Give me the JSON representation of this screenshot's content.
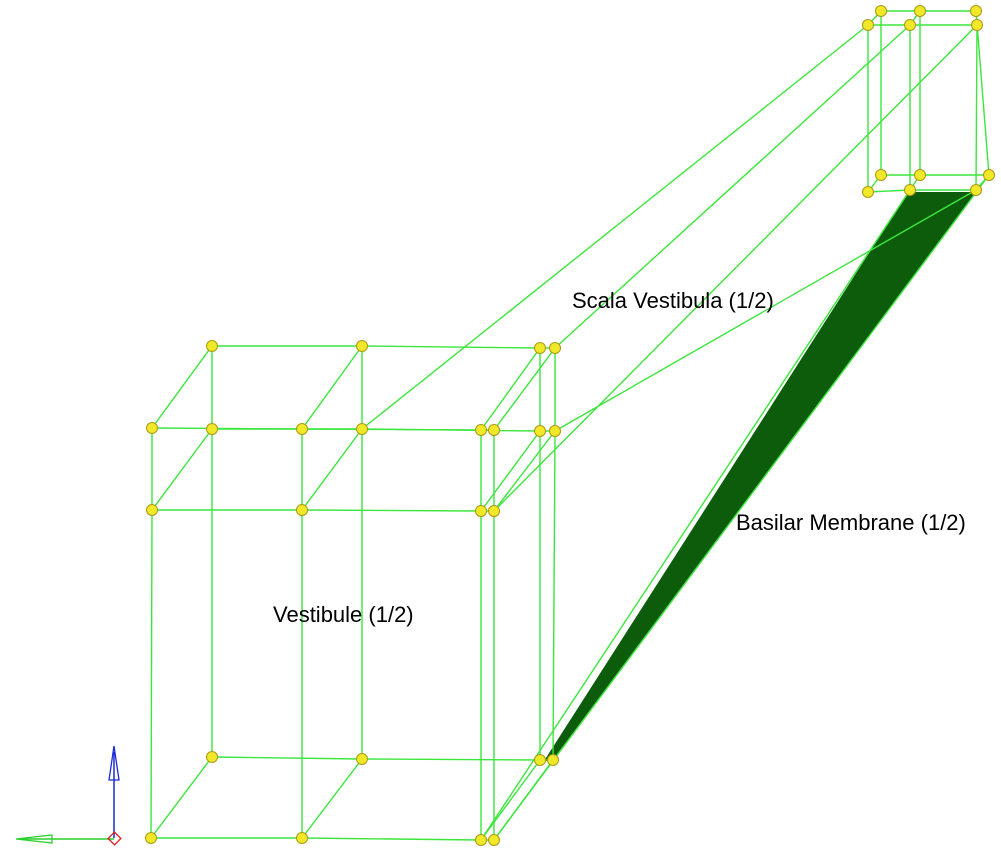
{
  "labels": {
    "vestibule": "Vestibule (1/2)",
    "scala_vestibula": "Scala Vestibula (1/2)",
    "basilar_membrane": "Basilar Membrane (1/2)"
  },
  "colors": {
    "edge": "#3ce63c",
    "node_fill": "#f2e82a",
    "node_stroke": "#a89a10",
    "membrane": "#0c5c0c",
    "axis_up": "#1a2ad8",
    "axis_left": "#2ad02a",
    "origin": "#e01818"
  },
  "icons": {
    "axis_triad": "axis-triad-icon"
  }
}
